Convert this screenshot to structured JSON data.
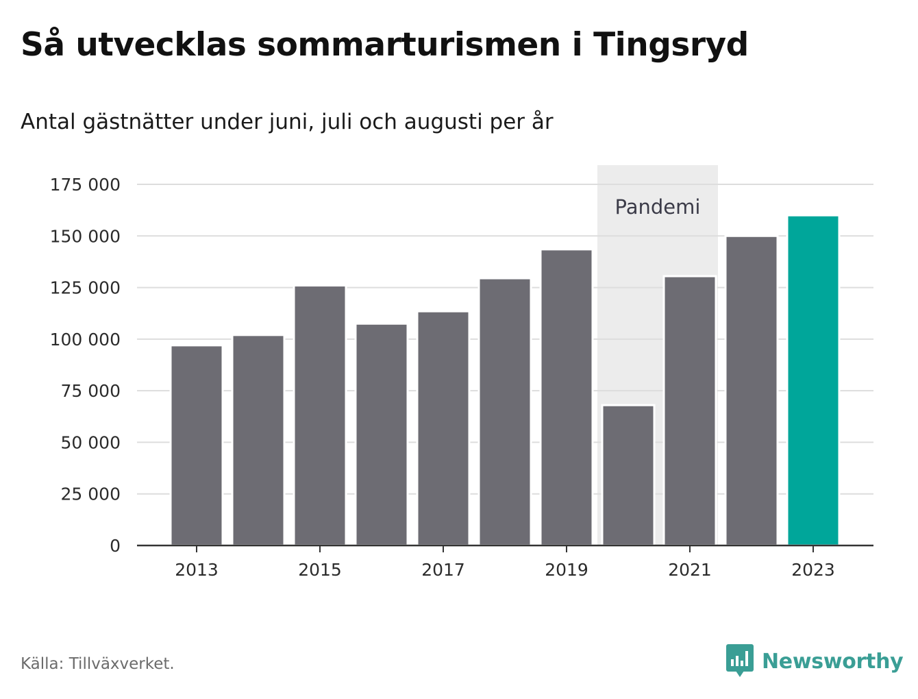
{
  "title": "Så utvecklas sommarturismen i Tingsryd",
  "subtitle": "Antal gästnätter under juni, juli och augusti per år",
  "source": "Källa: Tillväxverket.",
  "brand": "Newsworthy",
  "colors": {
    "bar": "#6d6c73",
    "highlight": "#00a69a",
    "band": "#ececec",
    "grid": "#dddddd",
    "axis": "#333333",
    "brand": "#3a9e95"
  },
  "chart_data": {
    "type": "bar",
    "title": "Så utvecklas sommarturismen i Tingsryd",
    "subtitle": "Antal gästnätter under juni, juli och augusti per år",
    "categories": [
      "2013",
      "2014",
      "2015",
      "2016",
      "2017",
      "2018",
      "2019",
      "2020",
      "2021",
      "2022",
      "2023"
    ],
    "values": [
      97000,
      102000,
      126000,
      107500,
      113500,
      129500,
      143500,
      68000,
      130500,
      150000,
      160000
    ],
    "highlight_index": 10,
    "x_tick_labels": [
      "2013",
      "2015",
      "2017",
      "2019",
      "2021",
      "2023"
    ],
    "y_ticks": [
      0,
      25000,
      50000,
      75000,
      100000,
      125000,
      150000,
      175000
    ],
    "y_tick_labels": [
      "0",
      "25 000",
      "50 000",
      "75 000",
      "100 000",
      "125 000",
      "150 000",
      "175 000"
    ],
    "ylim": [
      0,
      175000
    ],
    "grid": true,
    "annotation": {
      "label": "Pandemi",
      "start": "2020",
      "end": "2021"
    }
  }
}
